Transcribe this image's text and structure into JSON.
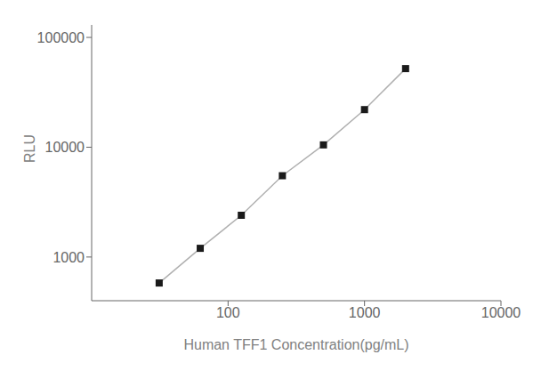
{
  "chart_data": {
    "type": "line",
    "x": [
      31.25,
      62.5,
      125,
      250,
      500,
      1000,
      2000
    ],
    "values": [
      580,
      1200,
      2400,
      5500,
      10500,
      22000,
      52000
    ],
    "xlabel": "Human TFF1 Concentration(pg/mL)",
    "ylabel": "RLU",
    "xlim": [
      10,
      10000
    ],
    "ylim": [
      400,
      130000
    ],
    "xticks": [
      100,
      1000,
      10000
    ],
    "yticks": [
      1000,
      10000,
      100000
    ],
    "log": true,
    "grid": false,
    "color": "#b0b0b0",
    "marker": "square",
    "line_style": "solid"
  }
}
